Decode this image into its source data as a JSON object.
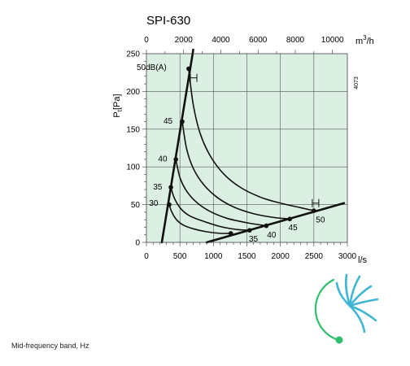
{
  "chart_data": {
    "type": "line",
    "title": "SPI-630",
    "ylabel_main": "P",
    "ylabel_sub": "t",
    "ylabel_unit": "[Pa]",
    "side_code": "4073",
    "xlabel": "l/s",
    "x2label_prefix": "m",
    "x2label_sup": "3",
    "x2label_suffix": "/h",
    "xlim": [
      0,
      3000
    ],
    "ylim": [
      0,
      250
    ],
    "x_ticks": [
      0,
      500,
      1000,
      1500,
      2000,
      2500,
      3000
    ],
    "x_tick_labels": [
      "0",
      "500",
      "1000",
      "1500",
      "2000",
      "2500",
      "3000"
    ],
    "y_ticks": [
      0,
      50,
      100,
      150,
      200,
      250
    ],
    "y_tick_labels": [
      "0",
      "50",
      "100",
      "150",
      "200",
      "250"
    ],
    "x2_ticks": [
      0,
      2000,
      4000,
      6000,
      8000,
      10000
    ],
    "x2_tick_labels": [
      "0",
      "2000",
      "4000",
      "6000",
      "8000",
      "10000"
    ],
    "grid": true,
    "background_color": "#dcefe3",
    "boundary_lines": [
      {
        "x": [
          230,
          690
        ],
        "y": [
          0,
          250
        ]
      },
      {
        "x": [
          900,
          2950
        ],
        "y": [
          0,
          52
        ]
      }
    ],
    "series": [
      {
        "points": [
          [
            340,
            50
          ],
          [
            380,
            40
          ],
          [
            450,
            30
          ],
          [
            550,
            23
          ],
          [
            700,
            18
          ],
          [
            900,
            14
          ],
          [
            1100,
            12
          ],
          [
            1260,
            12
          ]
        ]
      },
      {
        "points": [
          [
            365,
            73
          ],
          [
            420,
            58
          ],
          [
            520,
            44
          ],
          [
            650,
            35
          ],
          [
            850,
            28
          ],
          [
            1100,
            21
          ],
          [
            1350,
            17
          ],
          [
            1540,
            16
          ]
        ]
      },
      {
        "points": [
          [
            440,
            110
          ],
          [
            500,
            86
          ],
          [
            600,
            68
          ],
          [
            750,
            53
          ],
          [
            950,
            41
          ],
          [
            1200,
            32
          ],
          [
            1500,
            26
          ],
          [
            1790,
            22
          ]
        ]
      },
      {
        "points": [
          [
            535,
            160
          ],
          [
            600,
            124
          ],
          [
            700,
            98
          ],
          [
            850,
            77
          ],
          [
            1050,
            60
          ],
          [
            1300,
            47
          ],
          [
            1600,
            38
          ],
          [
            1900,
            33
          ],
          [
            2140,
            31
          ]
        ]
      },
      {
        "points": [
          [
            630,
            230
          ],
          [
            700,
            182
          ],
          [
            800,
            145
          ],
          [
            950,
            115
          ],
          [
            1150,
            91
          ],
          [
            1400,
            73
          ],
          [
            1700,
            60
          ],
          [
            2000,
            52
          ],
          [
            2300,
            46
          ],
          [
            2500,
            42
          ]
        ]
      }
    ],
    "marked_points": [
      {
        "x": 630,
        "y": 230
      },
      {
        "x": 535,
        "y": 160
      },
      {
        "x": 440,
        "y": 110
      },
      {
        "x": 365,
        "y": 73
      },
      {
        "x": 340,
        "y": 50
      },
      {
        "x": 1260,
        "y": 12
      },
      {
        "x": 1540,
        "y": 16
      },
      {
        "x": 1790,
        "y": 22
      },
      {
        "x": 2140,
        "y": 31
      },
      {
        "x": 2500,
        "y": 42
      }
    ],
    "annotations": {
      "left": [
        {
          "text": "50dB(A)",
          "x": 300,
          "y": 232
        },
        {
          "text": "45",
          "x": 390,
          "y": 161
        },
        {
          "text": "40",
          "x": 310,
          "y": 111
        },
        {
          "text": "35",
          "x": 235,
          "y": 74
        },
        {
          "text": "30",
          "x": 175,
          "y": 52
        }
      ],
      "bottom": [
        {
          "text": "35",
          "x": 1530,
          "y": 5
        },
        {
          "text": "40",
          "x": 1800,
          "y": 10
        },
        {
          "text": "45",
          "x": 2120,
          "y": 20
        },
        {
          "text": "50",
          "x": 2530,
          "y": 30
        }
      ]
    },
    "bracket_markers": [
      {
        "x": 705,
        "y": 218
      },
      {
        "x": 2525,
        "y": 52
      }
    ]
  },
  "caption": "Mid-frequency band, Hz",
  "colors": {
    "logo_blue": "#3fb6d4",
    "logo_green": "#2fbf6f"
  },
  "logo_icon": "fan-blades-logo-icon"
}
